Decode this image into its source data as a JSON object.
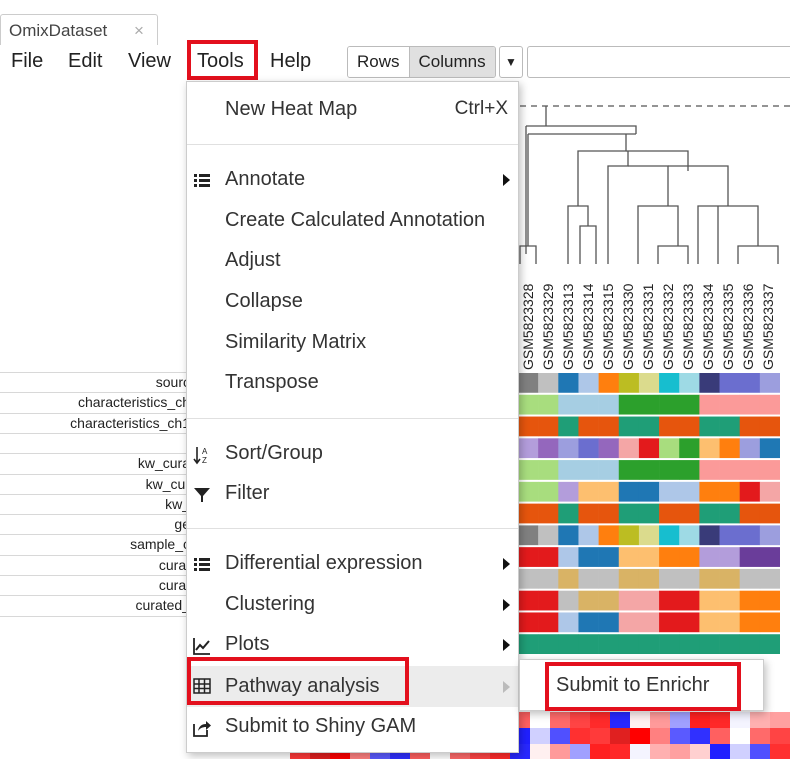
{
  "tab": {
    "title": "OmixDataset",
    "close": "×"
  },
  "menubar": {
    "file": "File",
    "edit": "Edit",
    "view": "View",
    "tools": "Tools",
    "help": "Help"
  },
  "toolbar": {
    "rows": "Rows",
    "columns": "Columns",
    "dropdown_icon": "caret-down-icon"
  },
  "row_labels": [
    "sourc",
    "characteristics_ch",
    "characteristics_ch1",
    "",
    "kw_cura",
    "kw_cur",
    "kw_",
    "ge",
    "sample_c",
    "curat",
    "curat",
    "curated_",
    ""
  ],
  "column_labels": [
    "GSM5823328",
    "GSM5823329",
    "GSM5823313",
    "GSM5823314",
    "GSM5823315",
    "GSM5823330",
    "GSM5823331",
    "GSM5823332",
    "GSM5823333",
    "GSM5823334",
    "GSM5823335",
    "GSM5823336",
    "GSM5823337"
  ],
  "tools_menu": [
    {
      "label": "New Heat Map",
      "shortcut": "Ctrl+X",
      "icon": ""
    },
    {
      "label": "Annotate",
      "icon": "list-icon",
      "submenu": true
    },
    {
      "label": "Create Calculated Annotation",
      "icon": ""
    },
    {
      "label": "Adjust",
      "icon": ""
    },
    {
      "label": "Collapse",
      "icon": ""
    },
    {
      "label": "Similarity Matrix",
      "icon": ""
    },
    {
      "label": "Transpose",
      "icon": ""
    },
    {
      "label": "Sort/Group",
      "icon": "sort-az-icon"
    },
    {
      "label": "Filter",
      "icon": "filter-icon"
    },
    {
      "label": "Differential expression",
      "icon": "list-icon",
      "submenu": true
    },
    {
      "label": "Clustering",
      "icon": "",
      "submenu": true
    },
    {
      "label": "Plots",
      "icon": "line-chart-icon",
      "submenu": true
    },
    {
      "label": "Pathway analysis",
      "icon": "table-icon",
      "submenu": true
    },
    {
      "label": "Submit to Shiny GAM",
      "icon": "share-icon"
    }
  ],
  "pathway_submenu": {
    "label": "Submit to Enrichr"
  },
  "highlight_color": "#e3101d"
}
